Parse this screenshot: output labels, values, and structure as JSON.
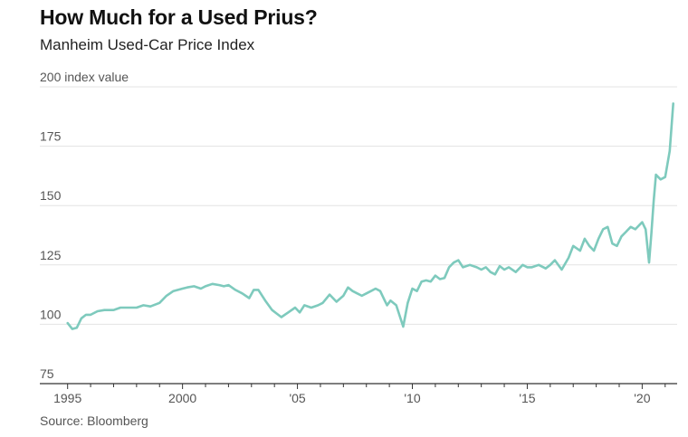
{
  "title": "How Much for a Used Prius?",
  "subtitle": "Manheim Used-Car Price Index",
  "source": "Source: Bloomberg",
  "colors": {
    "line": "#7ecabd",
    "grid": "#e3e3e3",
    "axis": "#333333",
    "text": "#555555"
  },
  "chart_data": {
    "type": "line",
    "title": "How Much for a Used Prius?",
    "subtitle": "Manheim Used-Car Price Index",
    "ylabel": "index value",
    "ylim": [
      75,
      200
    ],
    "xlim": [
      1994.5,
      2021.6
    ],
    "y_ticks": [
      {
        "value": 75,
        "label": "75"
      },
      {
        "value": 100,
        "label": "100"
      },
      {
        "value": 125,
        "label": "125"
      },
      {
        "value": 150,
        "label": "150"
      },
      {
        "value": 175,
        "label": "175"
      },
      {
        "value": 200,
        "label": "200 index value"
      }
    ],
    "x_ticks": [
      {
        "value": 1995,
        "label": "1995"
      },
      {
        "value": 2000,
        "label": "2000"
      },
      {
        "value": 2005,
        "label": "'05"
      },
      {
        "value": 2010,
        "label": "'10"
      },
      {
        "value": 2015,
        "label": "'15"
      },
      {
        "value": 2020,
        "label": "'20"
      }
    ],
    "grid": true,
    "series": [
      {
        "x": [
          1995.0,
          1995.2,
          1995.4,
          1995.6,
          1995.8,
          1996.0,
          1996.3,
          1996.6,
          1997.0,
          1997.3,
          1997.6,
          1998.0,
          1998.3,
          1998.6,
          1999.0,
          1999.3,
          1999.6,
          2000.0,
          2000.2,
          2000.5,
          2000.8,
          2001.0,
          2001.3,
          2001.6,
          2001.8,
          2002.0,
          2002.3,
          2002.6,
          2002.9,
          2003.1,
          2003.3,
          2003.6,
          2003.9,
          2004.1,
          2004.3,
          2004.6,
          2004.9,
          2005.1,
          2005.3,
          2005.6,
          2005.9,
          2006.1,
          2006.4,
          2006.7,
          2007.0,
          2007.2,
          2007.4,
          2007.6,
          2007.8,
          2008.0,
          2008.2,
          2008.4,
          2008.6,
          2008.8,
          2008.9,
          2009.05,
          2009.3,
          2009.6,
          2009.8,
          2010.0,
          2010.2,
          2010.4,
          2010.6,
          2010.8,
          2011.0,
          2011.2,
          2011.4,
          2011.6,
          2011.8,
          2012.0,
          2012.2,
          2012.5,
          2012.8,
          2013.0,
          2013.2,
          2013.4,
          2013.6,
          2013.8,
          2014.0,
          2014.2,
          2014.5,
          2014.8,
          2015.0,
          2015.2,
          2015.5,
          2015.8,
          2016.0,
          2016.2,
          2016.5,
          2016.8,
          2017.0,
          2017.3,
          2017.5,
          2017.7,
          2017.9,
          2018.1,
          2018.3,
          2018.5,
          2018.7,
          2018.9,
          2019.1,
          2019.3,
          2019.5,
          2019.7,
          2019.9,
          2020.0,
          2020.15,
          2020.3,
          2020.4,
          2020.5,
          2020.6,
          2020.8,
          2021.0,
          2021.2,
          2021.35
        ],
        "values": [
          100.5,
          98,
          98.5,
          102.5,
          104,
          104,
          105.5,
          106,
          106,
          107,
          107,
          107,
          108,
          107.5,
          109,
          112,
          114,
          115,
          115.5,
          116,
          115,
          116,
          117,
          116.5,
          116,
          116.5,
          114.5,
          113,
          111,
          114.5,
          114.5,
          110,
          106,
          104.5,
          103,
          105,
          107,
          105,
          108,
          107,
          108,
          109,
          112.5,
          109.5,
          112,
          115.5,
          114,
          113,
          112,
          113,
          114,
          115,
          114,
          110,
          108,
          110,
          108,
          99,
          109,
          115,
          114,
          118,
          118.5,
          118,
          120.5,
          119,
          119.5,
          124,
          126,
          127,
          124,
          125,
          124,
          123,
          124,
          122,
          121,
          124.5,
          123,
          124,
          122,
          125,
          124,
          124,
          125,
          123.5,
          125,
          127,
          123,
          128,
          133,
          131,
          136,
          133,
          131,
          136,
          140,
          141,
          134,
          133,
          137,
          139,
          141,
          140,
          142,
          143,
          140,
          126,
          138,
          152,
          163,
          161,
          162,
          173,
          193
        ]
      }
    ]
  }
}
